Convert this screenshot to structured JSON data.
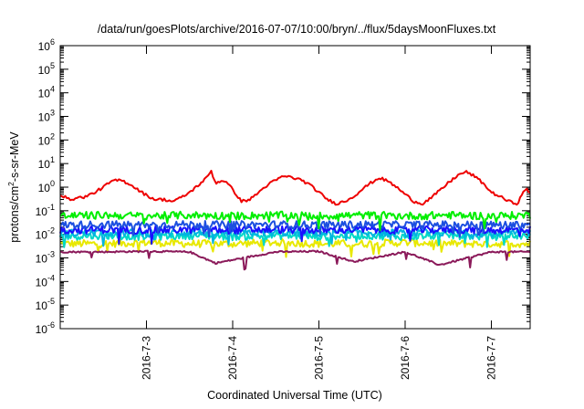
{
  "chart_data": {
    "type": "line",
    "title": "/data/run/goesPlots/archive/2016-07-07/10:00/bryn/../flux/5daysMoonFluxes.txt",
    "xlabel": "Coordinated Universal Time (UTC)",
    "ylabel": {
      "base": "protons/cm",
      "sup": "2",
      "tail": "-s-sr-MeV"
    },
    "yscale": "log",
    "ylim_exp": [
      -6,
      6
    ],
    "ytick_exponents": [
      -6,
      -5,
      -4,
      -3,
      -2,
      -1,
      0,
      1,
      2,
      3,
      4,
      5,
      6
    ],
    "xlim_days": [
      2.0,
      7.45
    ],
    "x_ticks": [
      {
        "label": "2016-7-3",
        "day": 3
      },
      {
        "label": "2016-7-4",
        "day": 4
      },
      {
        "label": "2016-7-5",
        "day": 5
      },
      {
        "label": "2016-7-6",
        "day": 6
      },
      {
        "label": "2016-7-7",
        "day": 7
      }
    ],
    "legend": "none",
    "grid": false,
    "series": [
      {
        "color": "#e8e800",
        "x": [
          2.0,
          2.5,
          3.0,
          3.5,
          4.0,
          4.5,
          5.0,
          5.5,
          6.0,
          6.5,
          7.0,
          7.45
        ],
        "y": [
          0.004,
          0.004,
          0.0045,
          0.004,
          0.004,
          0.0045,
          0.004,
          0.004,
          0.0045,
          0.004,
          0.004,
          0.004
        ]
      },
      {
        "color": "#8b1a5a",
        "x": [
          2.0,
          2.5,
          3.0,
          3.5,
          3.8,
          4.5,
          5.0,
          5.4,
          6.0,
          6.4,
          7.0,
          7.45
        ],
        "y": [
          0.0018,
          0.0018,
          0.0019,
          0.0018,
          0.0006,
          0.0018,
          0.0019,
          0.0007,
          0.0018,
          0.0005,
          0.0018,
          0.0018
        ]
      },
      {
        "color": "#00d8c8",
        "x": [
          2.0,
          2.5,
          3.0,
          3.5,
          4.0,
          4.5,
          5.0,
          5.5,
          6.0,
          6.5,
          7.0,
          7.45
        ],
        "y": [
          0.008,
          0.009,
          0.008,
          0.009,
          0.008,
          0.009,
          0.008,
          0.009,
          0.008,
          0.009,
          0.008,
          0.009
        ]
      },
      {
        "color": "#00b4e0",
        "x": [
          2.0,
          2.5,
          3.0,
          3.5,
          4.0,
          4.5,
          5.0,
          5.5,
          6.0,
          6.5,
          7.0,
          7.45
        ],
        "y": [
          0.011,
          0.012,
          0.011,
          0.012,
          0.011,
          0.012,
          0.011,
          0.012,
          0.011,
          0.012,
          0.011,
          0.012
        ]
      },
      {
        "color": "#1a10ff",
        "x": [
          2.0,
          2.5,
          3.0,
          3.5,
          4.0,
          4.5,
          5.0,
          5.5,
          6.0,
          6.5,
          7.0,
          7.45
        ],
        "y": [
          0.015,
          0.016,
          0.015,
          0.016,
          0.015,
          0.016,
          0.015,
          0.016,
          0.015,
          0.016,
          0.015,
          0.016
        ]
      },
      {
        "color": "#1c4fe0",
        "x": [
          2.0,
          2.5,
          3.0,
          3.5,
          4.0,
          4.5,
          5.0,
          5.5,
          6.0,
          6.5,
          7.0,
          7.45
        ],
        "y": [
          0.025,
          0.026,
          0.025,
          0.026,
          0.025,
          0.026,
          0.025,
          0.026,
          0.025,
          0.026,
          0.025,
          0.026
        ]
      },
      {
        "color": "#00ee00",
        "x": [
          2.0,
          2.5,
          3.0,
          3.5,
          4.0,
          4.5,
          5.0,
          5.5,
          6.0,
          6.5,
          7.0,
          7.45
        ],
        "y": [
          0.06,
          0.065,
          0.06,
          0.065,
          0.06,
          0.065,
          0.06,
          0.065,
          0.06,
          0.065,
          0.06,
          0.065
        ]
      },
      {
        "color": "#ee0000",
        "x": [
          2.0,
          2.1,
          2.2,
          2.3,
          2.4,
          2.5,
          2.6,
          2.7,
          2.8,
          2.9,
          3.0,
          3.1,
          3.2,
          3.3,
          3.4,
          3.5,
          3.6,
          3.7,
          3.75,
          3.8,
          3.9,
          4.0,
          4.1,
          4.2,
          4.3,
          4.4,
          4.5,
          4.6,
          4.7,
          4.8,
          4.9,
          5.0,
          5.1,
          5.2,
          5.3,
          5.4,
          5.5,
          5.6,
          5.7,
          5.8,
          5.9,
          6.0,
          6.1,
          6.2,
          6.3,
          6.4,
          6.5,
          6.6,
          6.7,
          6.8,
          6.9,
          7.0,
          7.1,
          7.2,
          7.3,
          7.4,
          7.45
        ],
        "y": [
          0.5,
          0.3,
          0.35,
          0.4,
          0.6,
          1.0,
          1.8,
          2.0,
          1.4,
          0.8,
          0.45,
          0.3,
          0.3,
          0.25,
          0.35,
          0.6,
          1.2,
          2.5,
          5.0,
          1.5,
          2.0,
          0.8,
          0.25,
          0.3,
          0.6,
          1.2,
          2.0,
          3.0,
          2.5,
          2.0,
          1.2,
          0.6,
          0.3,
          0.2,
          0.25,
          0.4,
          0.8,
          1.5,
          2.5,
          1.8,
          1.0,
          0.5,
          0.25,
          0.2,
          0.35,
          0.7,
          1.5,
          3.0,
          4.5,
          3.0,
          1.5,
          0.6,
          0.4,
          0.25,
          0.2,
          0.9,
          0.6
        ]
      }
    ]
  }
}
